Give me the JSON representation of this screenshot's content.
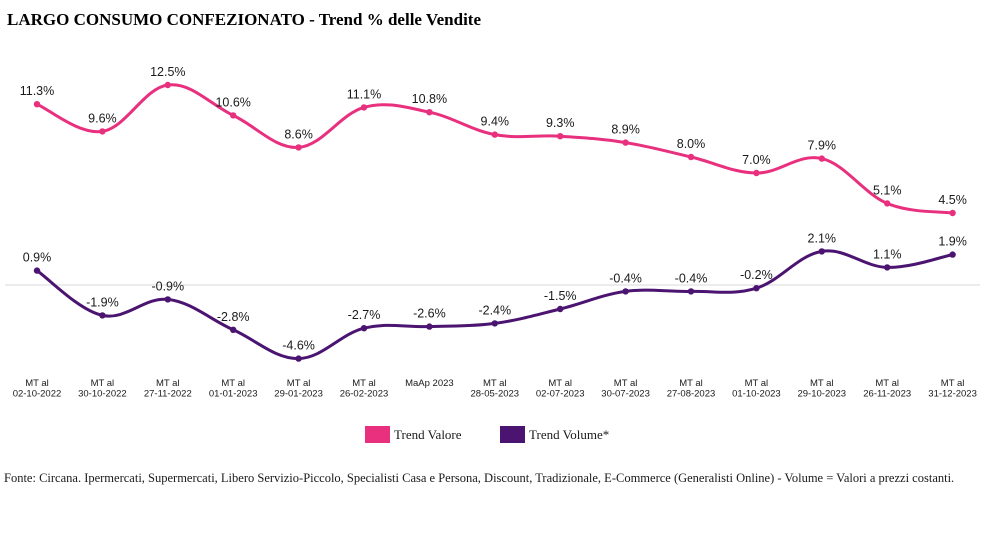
{
  "title": "LARGO CONSUMO CONFEZIONATO - Trend % delle Vendite",
  "footnote": "Fonte: Circana. Ipermercati, Supermercati, Libero Servizio-Piccolo, Specialisti Casa e Persona, Discount, Tradizionale, E-Commerce (Generalisti Online) - Volume = Valori a prezzi costanti.",
  "legend": {
    "valore": "Trend Valore",
    "volume": "Trend Volume*"
  },
  "colors": {
    "valore": "#E8307F",
    "volume": "#4B1470"
  },
  "chart_data": {
    "type": "line",
    "title": "LARGO CONSUMO CONFEZIONATO - Trend % delle Vendite",
    "categories": [
      [
        "MT al",
        "02-10-2022"
      ],
      [
        "MT al",
        "30-10-2022"
      ],
      [
        "MT al",
        "27-11-2022"
      ],
      [
        "MT al",
        "01-01-2023"
      ],
      [
        "MT al",
        "29-01-2023"
      ],
      [
        "MT al",
        "26-02-2023"
      ],
      [
        "MaAp 2023"
      ],
      [
        "MT al",
        "28-05-2023"
      ],
      [
        "MT al",
        "02-07-2023"
      ],
      [
        "MT al",
        "30-07-2023"
      ],
      [
        "MT al",
        "27-08-2023"
      ],
      [
        "MT al",
        "01-10-2023"
      ],
      [
        "MT al",
        "29-10-2023"
      ],
      [
        "MT al",
        "26-11-2023"
      ],
      [
        "MT al",
        "31-12-2023"
      ]
    ],
    "series": [
      {
        "name": "Trend Valore",
        "color": "#E8307F",
        "values": [
          11.3,
          9.6,
          12.5,
          10.6,
          8.6,
          11.1,
          10.8,
          9.4,
          9.3,
          8.9,
          8.0,
          7.0,
          7.9,
          5.1,
          4.5
        ],
        "labels": [
          "11.3%",
          "9.6%",
          "12.5%",
          "10.6%",
          "8.6%",
          "11.1%",
          "10.8%",
          "9.4%",
          "9.3%",
          "8.9%",
          "8.0%",
          "7.0%",
          "7.9%",
          "5.1%",
          "4.5%"
        ]
      },
      {
        "name": "Trend Volume*",
        "color": "#4B1470",
        "values": [
          0.9,
          -1.9,
          -0.9,
          -2.8,
          -4.6,
          -2.7,
          -2.6,
          -2.4,
          -1.5,
          -0.4,
          -0.4,
          -0.2,
          2.1,
          1.1,
          1.9
        ],
        "labels": [
          "0.9%",
          "-1.9%",
          "-0.9%",
          "-2.8%",
          "-4.6%",
          "-2.7%",
          "-2.6%",
          "-2.4%",
          "-1.5%",
          "-0.4%",
          "-0.4%",
          "-0.2%",
          "2.1%",
          "1.1%",
          "1.9%"
        ]
      }
    ],
    "zero_line": true,
    "grid": false,
    "legend_position": "bottom-center",
    "data_labels": "above"
  }
}
